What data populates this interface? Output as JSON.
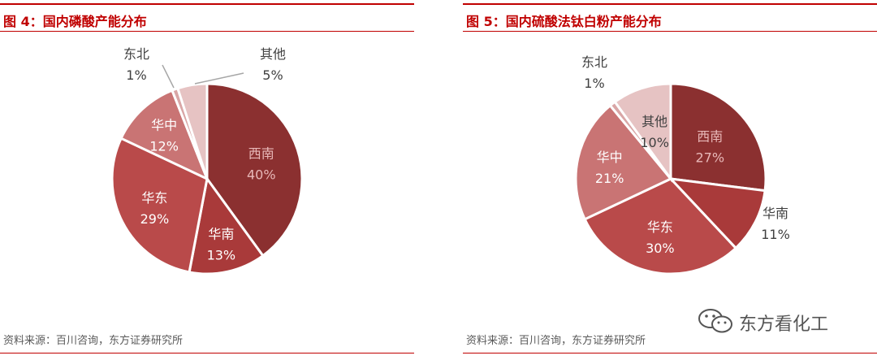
{
  "chart_data": [
    {
      "type": "pie",
      "title": "图 4：国内磷酸产能分布",
      "slices": [
        {
          "label": "西南",
          "value": 40,
          "value_text": "40%",
          "color": "#8b3030"
        },
        {
          "label": "华南",
          "value": 13,
          "value_text": "13%",
          "color": "#a93a3a"
        },
        {
          "label": "华东",
          "value": 29,
          "value_text": "29%",
          "color": "#b94a4a"
        },
        {
          "label": "华中",
          "value": 12,
          "value_text": "12%",
          "color": "#c97474"
        },
        {
          "label": "东北",
          "value": 1,
          "value_text": "1%",
          "color": "#d9a6a6"
        },
        {
          "label": "其他",
          "value": 5,
          "value_text": "5%",
          "color": "#e6c3c3"
        }
      ],
      "source": "资料来源：百川咨询，东方证券研究所"
    },
    {
      "type": "pie",
      "title": "图 5：国内硫酸法钛白粉产能分布",
      "slices": [
        {
          "label": "西南",
          "value": 27,
          "value_text": "27%",
          "color": "#8b3030"
        },
        {
          "label": "华南",
          "value": 11,
          "value_text": "11%",
          "color": "#a93a3a"
        },
        {
          "label": "华东",
          "value": 30,
          "value_text": "30%",
          "color": "#b94a4a"
        },
        {
          "label": "华中",
          "value": 21,
          "value_text": "21%",
          "color": "#c97474"
        },
        {
          "label": "东北",
          "value": 1,
          "value_text": "1%",
          "color": "#d9a6a6"
        },
        {
          "label": "其他",
          "value": 10,
          "value_text": "10%",
          "color": "#e6c3c3"
        }
      ],
      "source": "资料来源：百川咨询，东方证券研究所"
    }
  ],
  "watermark": {
    "text": "东方看化工",
    "icon": "wechat-icon"
  }
}
